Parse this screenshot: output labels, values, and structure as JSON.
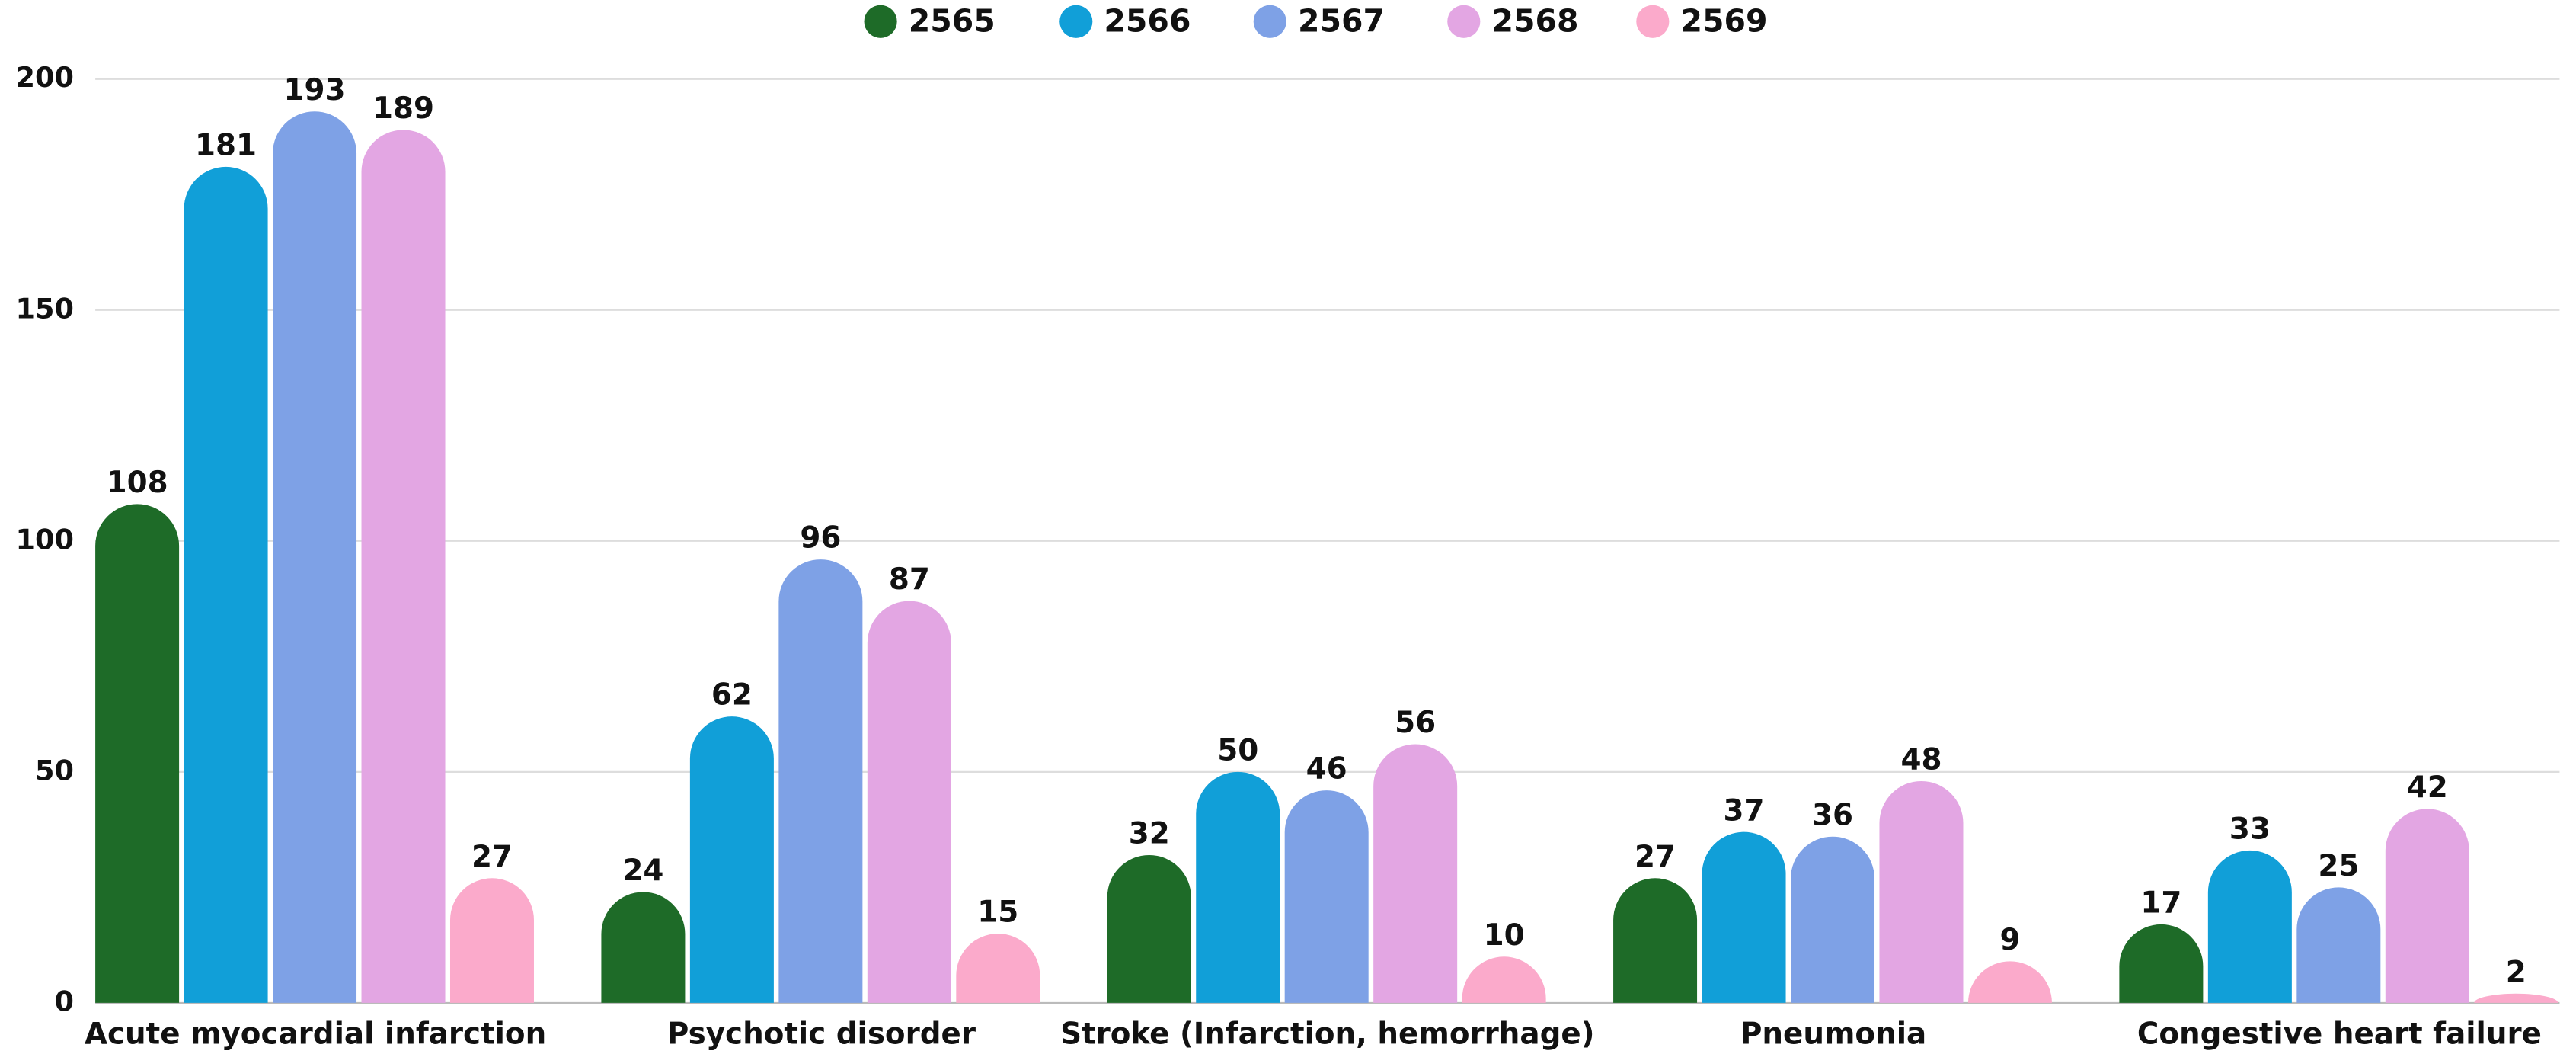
{
  "chart_data": {
    "type": "bar",
    "categories": [
      "Acute myocardial infarction",
      "Psychotic disorder",
      "Stroke (Infarction, hemorrhage)",
      "Pneumonia",
      "Congestive heart failure"
    ],
    "series": [
      {
        "name": "2565",
        "color": "#1e6b28",
        "values": [
          108,
          24,
          32,
          27,
          17
        ]
      },
      {
        "name": "2566",
        "color": "#119fd8",
        "values": [
          181,
          62,
          50,
          37,
          33
        ]
      },
      {
        "name": "2567",
        "color": "#7ea1e6",
        "values": [
          193,
          96,
          46,
          36,
          25
        ]
      },
      {
        "name": "2568",
        "color": "#e3a6e3",
        "values": [
          189,
          87,
          56,
          48,
          42
        ]
      },
      {
        "name": "2569",
        "color": "#fbaacb",
        "values": [
          27,
          15,
          10,
          9,
          2
        ]
      }
    ],
    "ylim": [
      0,
      200
    ],
    "yticks": [
      0,
      50,
      100,
      150,
      200
    ],
    "grid": true,
    "legend": "top"
  }
}
